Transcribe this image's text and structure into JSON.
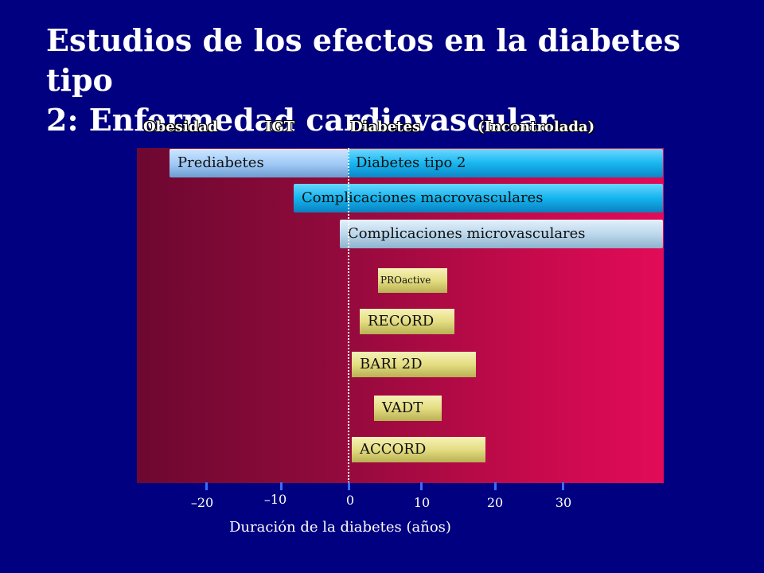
{
  "title": {
    "line1": "Estudios de los efectos en la diabetes tipo",
    "line2": "2: Enfermedad cardiovascular"
  },
  "stages": {
    "obesity": "Obesidad",
    "igt": "IGT",
    "diabetes": "Diabetes",
    "uncontrolled": "(Incontrolada)"
  },
  "bars": {
    "prediabetes": "Prediabetes",
    "type2": "Diabetes tipo 2",
    "macro": "Complicaciones macrovasculares",
    "micro": "Complicaciones microvasculares"
  },
  "trials": {
    "proactive": "PROactive",
    "record": "RECORD",
    "bari": "BARI 2D",
    "vadt": "VADT",
    "accord": "ACCORD"
  },
  "axis": {
    "ticks": [
      "–20",
      "–10",
      "0",
      "10",
      "20",
      "30"
    ],
    "label": "Duración de la diabetes (años)"
  },
  "colors": {
    "background": "#000080",
    "panel_start": "#6d0830",
    "panel_end": "#e20b58",
    "trial_fill": "#e4dd82"
  }
}
